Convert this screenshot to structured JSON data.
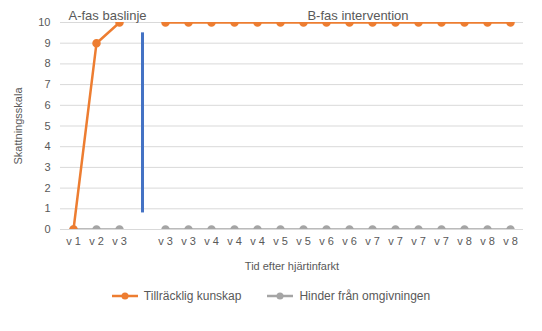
{
  "chart_data": {
    "type": "line",
    "xlabel": "Tid efter hjärtinfarkt",
    "ylabel": "Skattningsskala",
    "categories": [
      "v 1",
      "v 2",
      "v 3",
      null,
      "v 3",
      "v 3",
      "v 4",
      "v 4",
      "v 4",
      "v 5",
      "v 5",
      "v 6",
      "v 6",
      "v 7",
      "v 7",
      "v 7",
      "v 7",
      "v 8",
      "v 8",
      "v 8"
    ],
    "series": [
      {
        "name": "Tillräcklig kunskap",
        "color": "#ED7D31",
        "marker": "circle",
        "values": [
          0,
          9,
          10,
          null,
          10,
          10,
          10,
          10,
          10,
          10,
          10,
          10,
          10,
          10,
          10,
          10,
          10,
          10,
          10,
          10
        ]
      },
      {
        "name": "Hinder från omgivningen",
        "color": "#A5A5A5",
        "marker": "circle",
        "values": [
          0,
          0,
          0,
          null,
          0,
          0,
          0,
          0,
          0,
          0,
          0,
          0,
          0,
          0,
          0,
          0,
          0,
          0,
          0,
          0
        ]
      }
    ],
    "ylim": [
      0,
      10
    ],
    "yticks": [
      0,
      1,
      2,
      3,
      4,
      5,
      6,
      7,
      8,
      9,
      10
    ],
    "grid": true,
    "legend": "bottom",
    "annotations": [
      {
        "text": "A-fas baslinje"
      },
      {
        "text": "B-fas intervention"
      }
    ],
    "phase_line": {
      "y1": 0.8,
      "y2": 9.5,
      "color": "#4472C4"
    }
  }
}
